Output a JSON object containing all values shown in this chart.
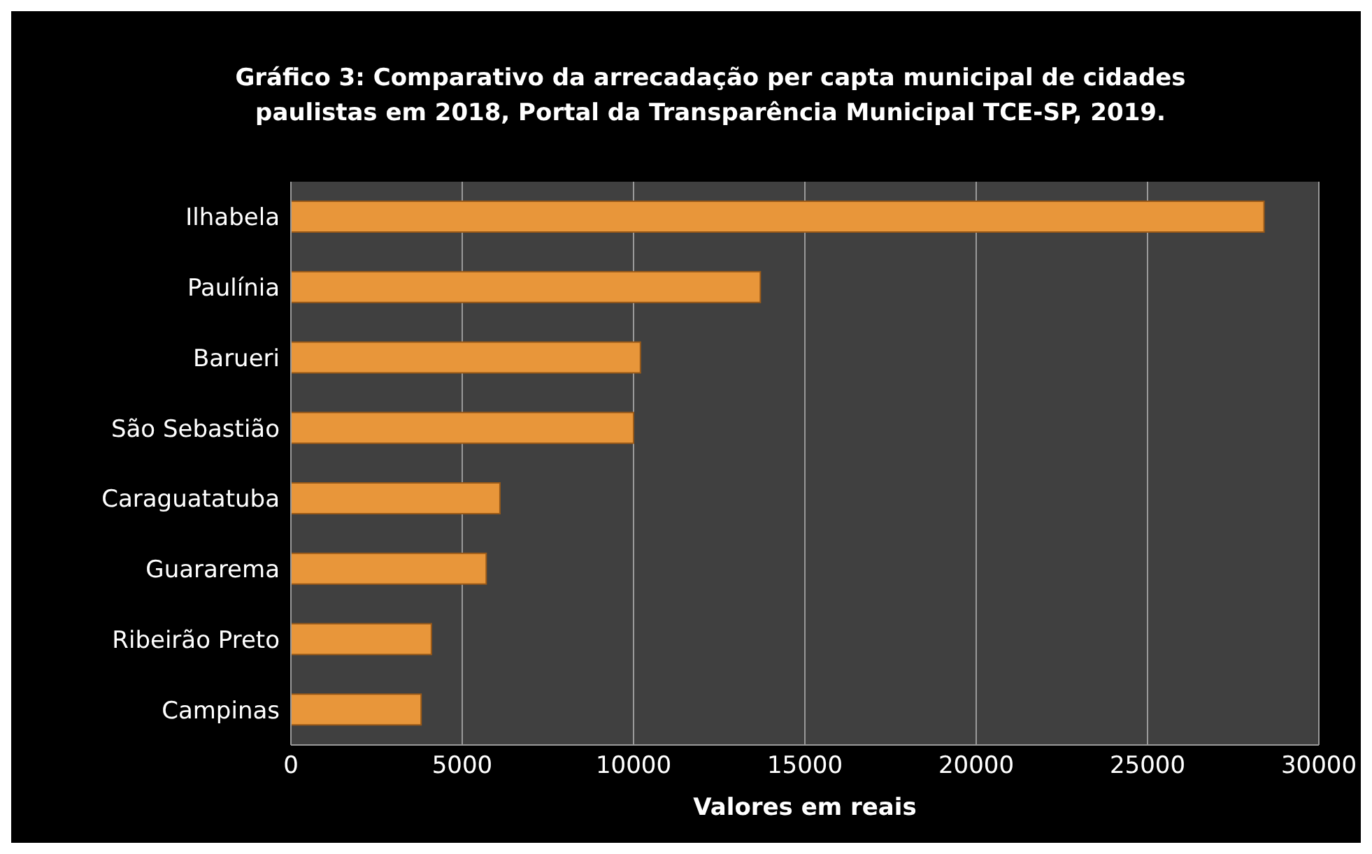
{
  "chart_data": {
    "type": "bar",
    "orientation": "horizontal",
    "title": "Gráfico 3: Comparativo da arrecadação per capta municipal de cidades paulistas em 2018, Portal da Transparência Municipal TCE-SP, 2019.",
    "xlabel": "Valores em reais",
    "categories": [
      "Ilhabela",
      "Paulínia",
      "Barueri",
      "São Sebastião",
      "Caraguatatuba",
      "Guararema",
      "Ribeirão Preto",
      "Campinas"
    ],
    "values": [
      28400,
      13700,
      10200,
      10000,
      6100,
      5700,
      4100,
      3800
    ],
    "color": "#e8963a",
    "xlim": [
      0,
      30000
    ],
    "xticks": [
      0,
      5000,
      10000,
      15000,
      20000,
      25000,
      30000
    ],
    "grid": "x"
  }
}
